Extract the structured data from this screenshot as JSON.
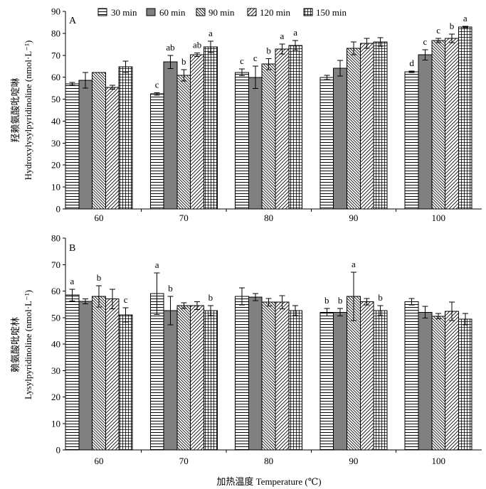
{
  "colors": {
    "solid_bar": "#808080",
    "ink": "#000000",
    "background": "#ffffff"
  },
  "chart_data": [
    {
      "type": "bar",
      "panel_label": "A",
      "ylabel_cn": "羟赖氨酸吡啶啉",
      "ylabel": "Hydroxylysylpyridinoline (nmol·L⁻¹)",
      "categories": [
        "60",
        "70",
        "80",
        "90",
        "100"
      ],
      "ylim": [
        0,
        90
      ],
      "yticks": [
        0,
        10,
        20,
        30,
        40,
        50,
        60,
        70,
        80,
        90
      ],
      "grid": false,
      "legend": "top",
      "series": [
        {
          "name": "30 min",
          "values": [
            57.0,
            52.4,
            62.2,
            59.9,
            62.5
          ],
          "errors": [
            0.6,
            0.6,
            1.5,
            1.0,
            0.3
          ],
          "letters": [
            "",
            "c",
            "c",
            "",
            "d"
          ]
        },
        {
          "name": "60 min",
          "values": [
            58.6,
            67.0,
            59.9,
            64.1,
            70.2
          ],
          "errors": [
            3.6,
            3.0,
            5.1,
            3.6,
            2.3
          ],
          "letters": [
            "",
            "ab",
            "c",
            "",
            "c"
          ]
        },
        {
          "name": "90 min",
          "values": [
            62.2,
            60.9,
            66.0,
            73.2,
            76.7
          ],
          "errors": [
            0,
            2.6,
            2.5,
            2.9,
            1.0
          ],
          "letters": [
            "",
            "b",
            "b",
            "",
            "c"
          ]
        },
        {
          "name": "120 min",
          "values": [
            55.4,
            70.2,
            72.8,
            75.4,
            77.7
          ],
          "errors": [
            0.9,
            0.8,
            2.3,
            2.3,
            1.9
          ],
          "letters": [
            "",
            "ab",
            "a",
            "",
            "b"
          ]
        },
        {
          "name": "150 min",
          "values": [
            64.7,
            73.8,
            74.5,
            76.1,
            82.9
          ],
          "errors": [
            2.6,
            2.6,
            2.2,
            1.9,
            0.3
          ],
          "letters": [
            "",
            "a",
            "a",
            "",
            "a"
          ]
        }
      ]
    },
    {
      "type": "bar",
      "panel_label": "B",
      "ylabel_cn": "赖氨酸吡啶林",
      "ylabel": "Lysylpyridinoline (nmol·L⁻¹)",
      "xlabel": "加热温度 Temperature (℃)",
      "categories": [
        "60",
        "70",
        "80",
        "90",
        "100"
      ],
      "ylim": [
        0,
        80
      ],
      "yticks": [
        0,
        10,
        20,
        30,
        40,
        50,
        60,
        70,
        80
      ],
      "grid": false,
      "legend": "none",
      "series": [
        {
          "values": [
            58.5,
            59.0,
            58.0,
            52.0,
            56.0
          ],
          "errors": [
            2.2,
            7.8,
            3.2,
            1.4,
            1.2
          ],
          "letters": [
            "a",
            "a",
            "",
            "b",
            ""
          ]
        },
        {
          "values": [
            56.1,
            52.6,
            57.7,
            52.0,
            52.0
          ],
          "errors": [
            0.9,
            5.4,
            1.3,
            1.4,
            2.2
          ],
          "letters": [
            "",
            "b",
            "",
            "b",
            ""
          ]
        },
        {
          "values": [
            58.0,
            54.5,
            55.8,
            58.0,
            50.5
          ],
          "errors": [
            4.0,
            1.1,
            1.4,
            9.1,
            1.0
          ],
          "letters": [
            "b",
            "",
            "",
            "a",
            ""
          ]
        },
        {
          "values": [
            57.0,
            54.5,
            55.8,
            56.0,
            52.3
          ],
          "errors": [
            3.7,
            1.5,
            2.5,
            1.2,
            3.5
          ],
          "letters": [
            "",
            "",
            "",
            "",
            ""
          ]
        },
        {
          "values": [
            51.0,
            52.6,
            52.6,
            52.6,
            49.4
          ],
          "errors": [
            2.7,
            1.9,
            1.9,
            1.9,
            2.1
          ],
          "letters": [
            "c",
            "b",
            "",
            "b",
            ""
          ]
        }
      ]
    }
  ]
}
